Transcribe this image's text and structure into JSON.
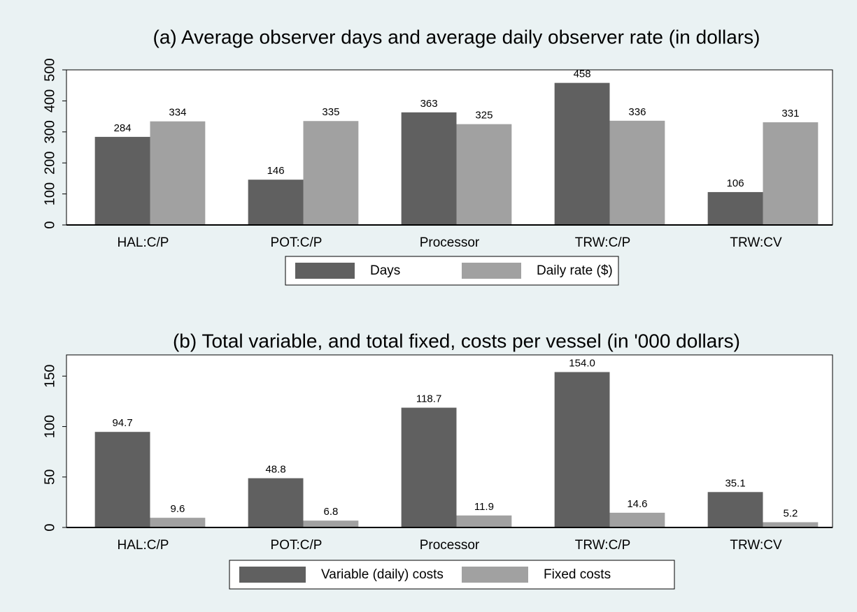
{
  "chart_data": [
    {
      "type": "bar",
      "title": "(a) Average observer days and average daily observer rate (in dollars)",
      "categories": [
        "HAL:C/P",
        "POT:C/P",
        "Processor",
        "TRW:C/P",
        "TRW:CV"
      ],
      "series": [
        {
          "name": "Days",
          "color": "#606060",
          "values": [
            284,
            146,
            363,
            458,
            106
          ]
        },
        {
          "name": "Daily rate ($)",
          "color": "#a1a1a1",
          "values": [
            334,
            335,
            325,
            336,
            331
          ]
        }
      ],
      "ylim": [
        0,
        500
      ],
      "yticks": [
        0,
        100,
        200,
        300,
        400,
        500
      ],
      "legend": "bottom"
    },
    {
      "type": "bar",
      "title": "(b) Total variable, and total fixed, costs per vessel (in '000 dollars)",
      "categories": [
        "HAL:C/P",
        "POT:C/P",
        "Processor",
        "TRW:C/P",
        "TRW:CV"
      ],
      "series": [
        {
          "name": "Variable (daily) costs",
          "color": "#606060",
          "values": [
            94.7,
            48.8,
            118.7,
            154,
            35.1
          ],
          "value_labels": [
            "94.7",
            "48.8",
            "118.7",
            "154.0",
            "35.1"
          ]
        },
        {
          "name": "Fixed costs",
          "color": "#a1a1a1",
          "values": [
            9.6,
            6.8,
            11.9,
            14.6,
            5.2
          ]
        }
      ],
      "ylim": [
        0,
        171
      ],
      "yticks": [
        0,
        50,
        100,
        150
      ],
      "legend": "bottom"
    }
  ]
}
